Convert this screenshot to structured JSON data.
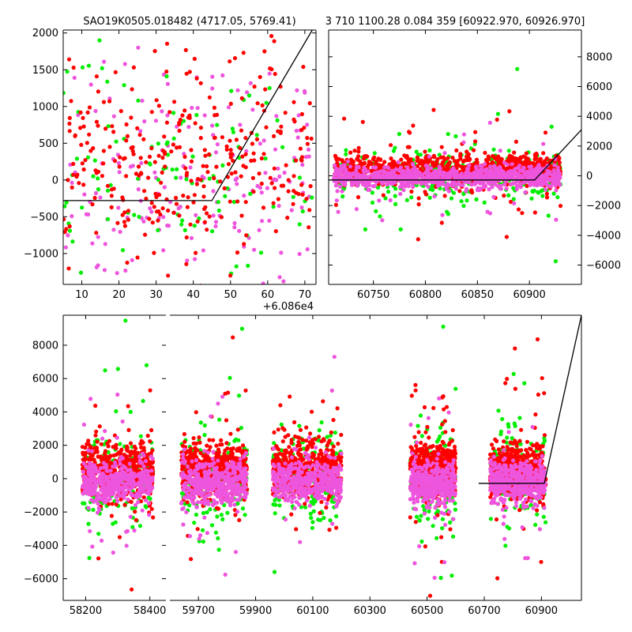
{
  "titles": {
    "left": "SAO19K0505.018482 (4717.05, 5769.41)",
    "right": "3 710 1100.28 0.084 359 [60922.970, 60926.970]"
  },
  "colors": {
    "red": "#ff0000",
    "green": "#00ee00",
    "magenta": "#ee55dd",
    "model": "#000000"
  },
  "chart_data": [
    {
      "id": "zoom",
      "type": "scatter",
      "title": "SAO19K0505.018482 (4717.05, 5769.41)",
      "x_offset_label": "+6.086e4",
      "xlim": [
        5,
        73
      ],
      "ylim": [
        -1420,
        2040
      ],
      "xticks": [
        10,
        20,
        30,
        40,
        50,
        60,
        70
      ],
      "yticks": [
        -1000,
        -500,
        0,
        500,
        1000,
        1500,
        2000
      ],
      "model_line": [
        [
          5,
          -280
        ],
        [
          45,
          -280
        ],
        [
          72,
          2040
        ]
      ],
      "series": [
        {
          "name": "red",
          "color": "red",
          "count": 340,
          "x_range": [
            5,
            72
          ],
          "center": 350,
          "spread": 650,
          "seed": 11
        },
        {
          "name": "green",
          "color": "green",
          "count": 110,
          "x_range": [
            5,
            72
          ],
          "center": 150,
          "spread": 700,
          "seed": 21
        },
        {
          "name": "magenta",
          "color": "magenta",
          "count": 190,
          "x_range": [
            5,
            72
          ],
          "center": 0,
          "spread": 750,
          "seed": 31
        }
      ]
    },
    {
      "id": "right",
      "type": "scatter",
      "xlim": [
        60707,
        60950
      ],
      "ylim": [
        -7300,
        9800
      ],
      "xticks": [
        60750,
        60800,
        60850,
        60900
      ],
      "yticks": [
        -6000,
        -4000,
        -2000,
        0,
        2000,
        4000,
        6000,
        8000
      ],
      "model_line": [
        [
          60707,
          -280
        ],
        [
          60905,
          -280
        ],
        [
          60950,
          3100
        ]
      ],
      "series": [
        {
          "name": "red",
          "color": "red",
          "count": 900,
          "x_range": [
            60712,
            60930
          ],
          "center": 400,
          "spread": 500,
          "seed": 41
        },
        {
          "name": "green",
          "color": "green",
          "count": 300,
          "x_range": [
            60712,
            60930
          ],
          "center": 0,
          "spread": 900,
          "seed": 51
        },
        {
          "name": "magenta",
          "color": "magenta",
          "count": 900,
          "x_range": [
            60712,
            60930
          ],
          "center": -100,
          "spread": 350,
          "seed": 61
        }
      ]
    },
    {
      "id": "bottom",
      "type": "scatter",
      "segments": [
        {
          "xlim": [
            58130,
            58450
          ],
          "ylim": [
            -7300,
            9800
          ],
          "xticks": [
            58200,
            58400
          ],
          "yticks": [
            -6000,
            -4000,
            -2000,
            0,
            2000,
            4000,
            6000,
            8000
          ],
          "clusters": [
            [
              58190,
              58410
            ]
          ]
        },
        {
          "xlim": [
            59600,
            61040
          ],
          "ylim": [
            -7300,
            9800
          ],
          "xticks": [
            59700,
            59900,
            60100,
            60300,
            60500,
            60700,
            60900
          ],
          "clusters": [
            [
              59640,
              59870
            ],
            [
              59960,
              60200
            ],
            [
              60440,
              60600
            ],
            [
              60720,
              60915
            ]
          ],
          "model_line": [
            [
              60680,
              -280
            ],
            [
              60910,
              -280
            ],
            [
              61040,
              9800
            ]
          ]
        }
      ],
      "series": [
        {
          "name": "red",
          "color": "red",
          "per_cluster": 520,
          "center": 500,
          "spread": 800,
          "seed": 71
        },
        {
          "name": "green",
          "color": "green",
          "per_cluster": 150,
          "center": 100,
          "spread": 1500,
          "seed": 81
        },
        {
          "name": "magenta",
          "color": "magenta",
          "per_cluster": 420,
          "center": -200,
          "spread": 650,
          "seed": 91
        }
      ]
    }
  ]
}
